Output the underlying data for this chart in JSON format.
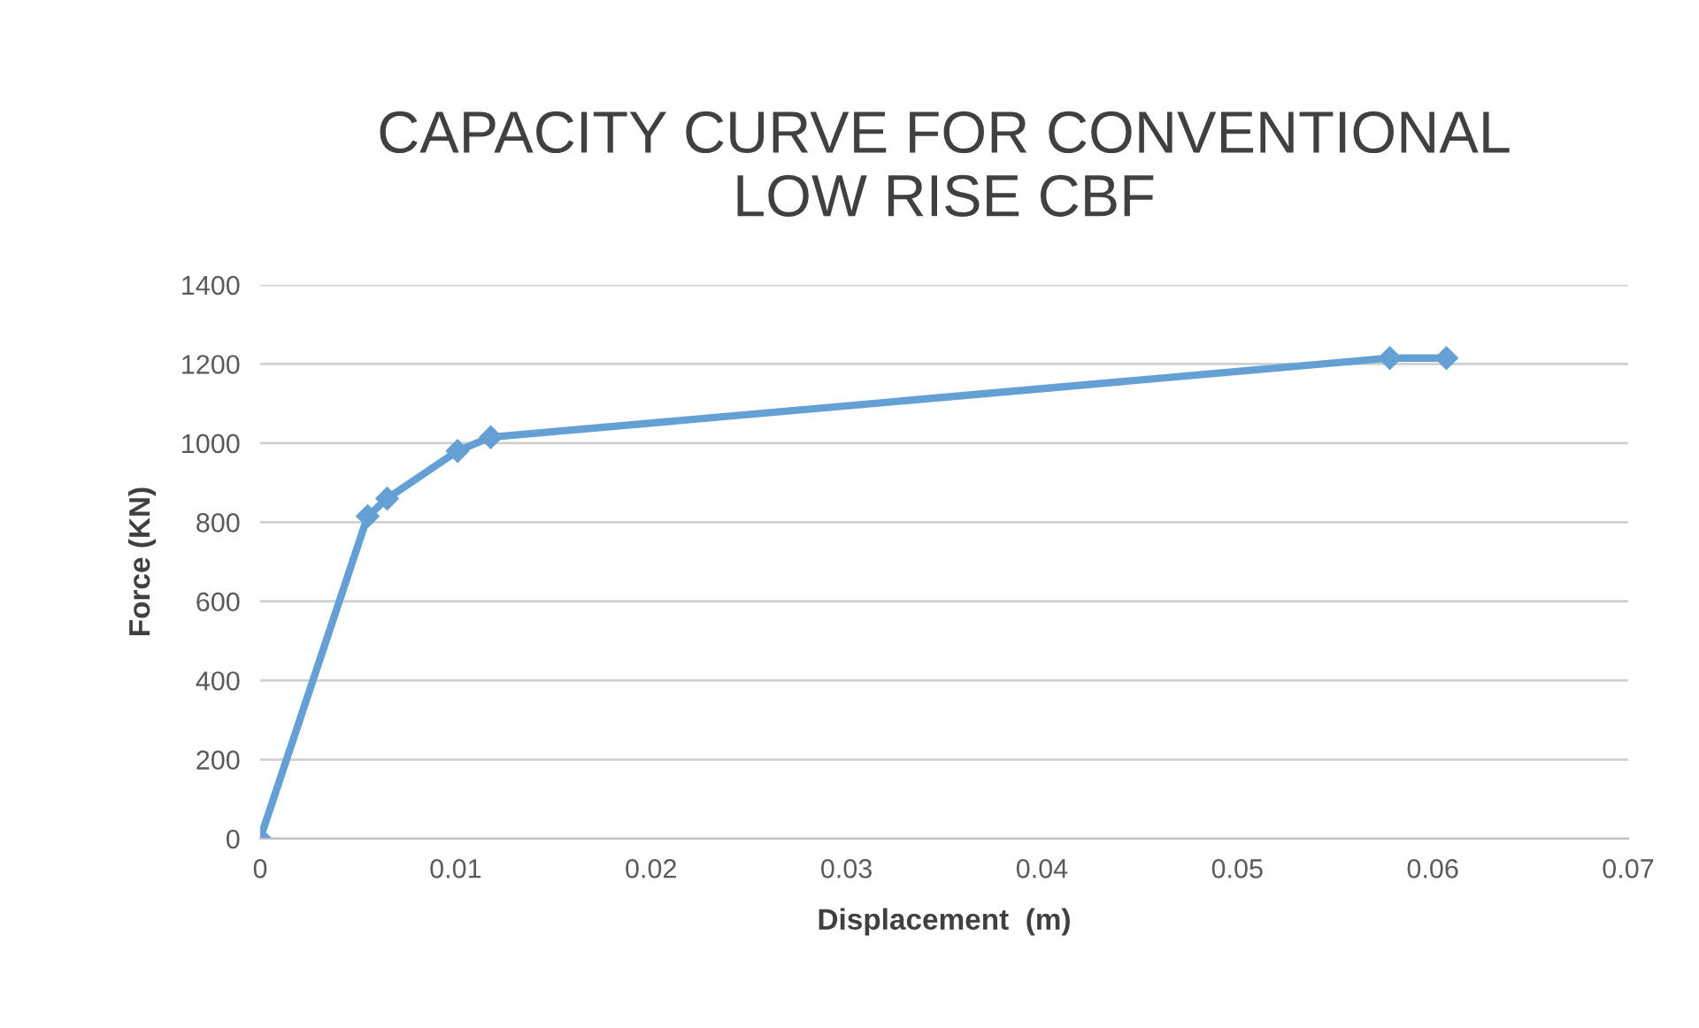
{
  "chart_data": {
    "type": "line",
    "title": "CAPACITY CURVE FOR CONVENTIONAL\nLOW RISE CBF",
    "xlabel": "Displacement  (m)",
    "ylabel": "Force (KN)",
    "series": [
      {
        "color": "#64a0d4",
        "x": [
          0,
          0.0055,
          0.0065,
          0.0101,
          0.0118,
          0.0578,
          0.0607
        ],
        "values": [
          0,
          815,
          860,
          980,
          1015,
          1215,
          1215
        ]
      }
    ],
    "xlim": [
      0,
      0.07
    ],
    "xticks": [
      0,
      0.01,
      0.02,
      0.03,
      0.04,
      0.05,
      0.06,
      0.07
    ],
    "ylim": [
      0,
      1400
    ],
    "yticks": [
      0,
      200,
      400,
      600,
      800,
      1000,
      1200,
      1400
    ],
    "grid": "y",
    "marker": "diamond",
    "line_style": "solid",
    "legend": false
  }
}
